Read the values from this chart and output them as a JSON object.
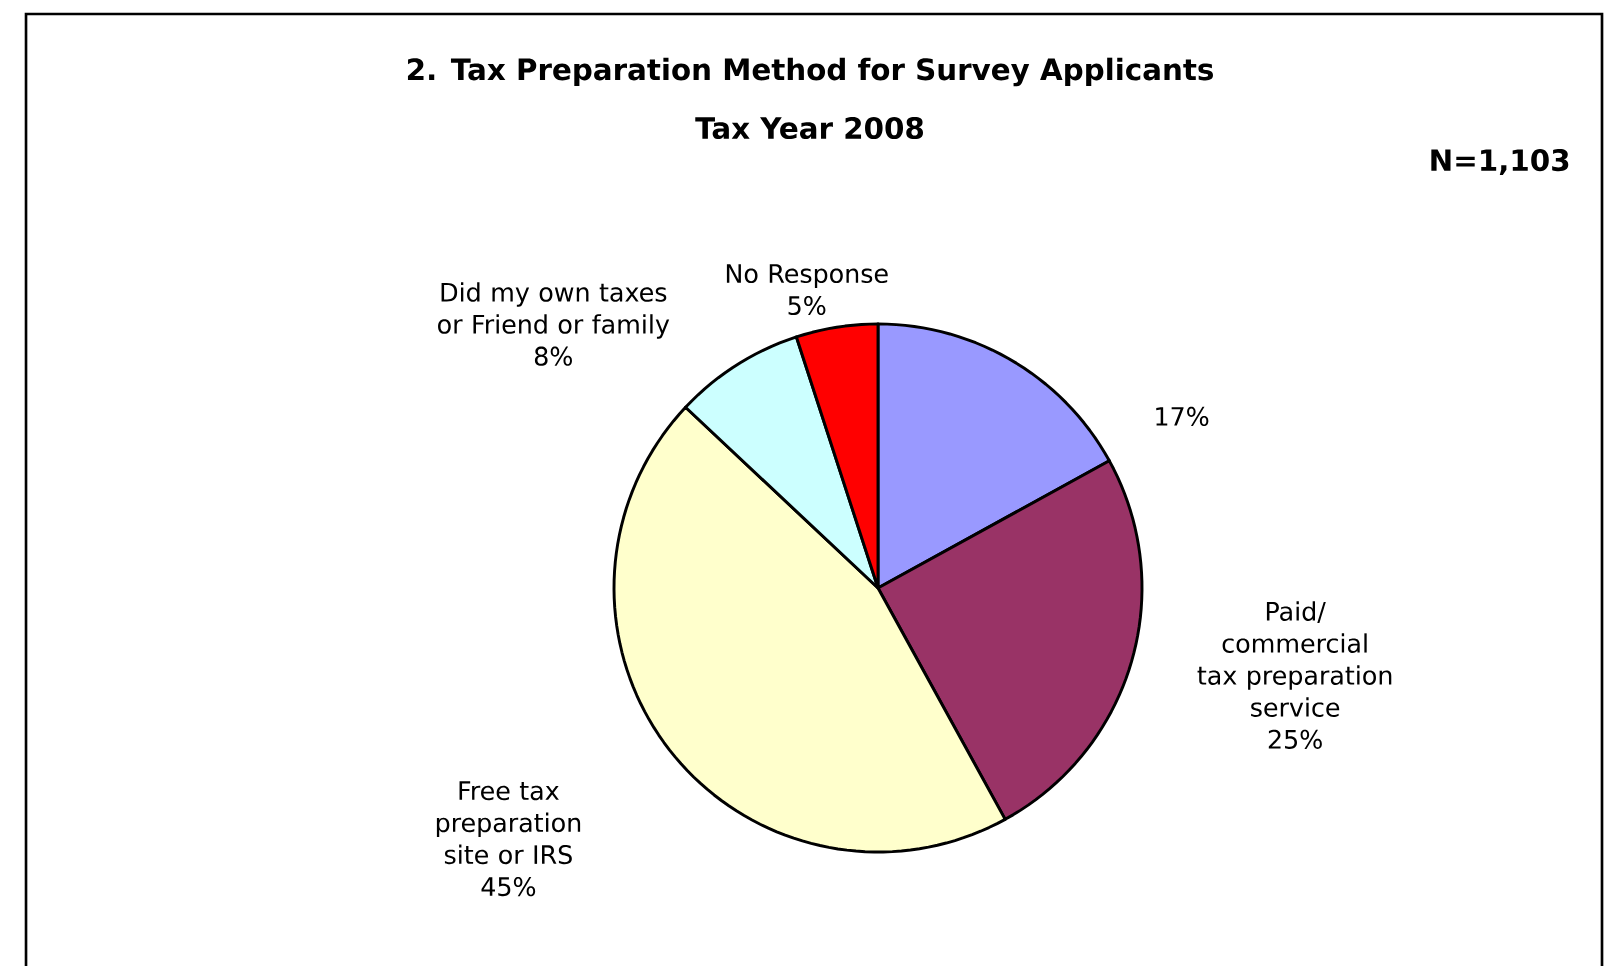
{
  "chart_data": {
    "type": "pie",
    "title": "2. Tax Preparation Method for Survey Applicants",
    "subtitle": "Tax Year 2008",
    "annotations": [
      "N=1,103"
    ],
    "categories": [
      null,
      "Paid/ commercial tax preparation service",
      "Free tax preparation site or IRS",
      "Did my own taxes or Friend or family",
      "No Response"
    ],
    "values": [
      17,
      25,
      45,
      8,
      5
    ],
    "value_labels": [
      "17%",
      "25%",
      "45%",
      "8%",
      "5%"
    ],
    "colors": [
      "#9999ff",
      "#993366",
      "#ffffcc",
      "#ccffff",
      "#ff0000"
    ]
  }
}
